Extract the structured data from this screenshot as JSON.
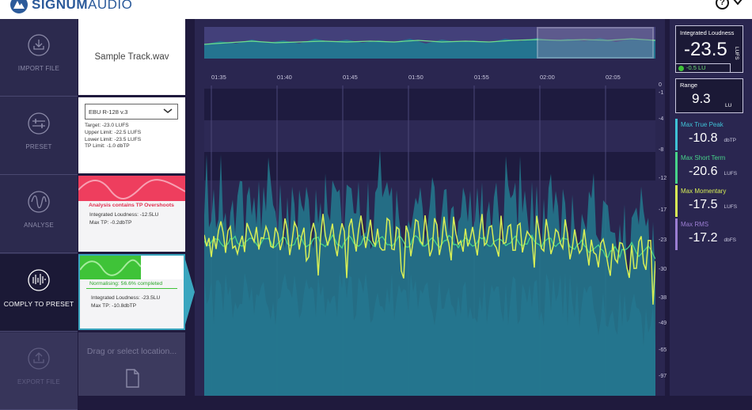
{
  "app": {
    "logo_bold": "SIGNUM",
    "logo_light": "AUDIO",
    "help_glyph": "?"
  },
  "nav": [
    {
      "label": "IMPORT FILE",
      "icon": "import-icon",
      "state": "normal"
    },
    {
      "label": "PRESET",
      "icon": "preset-icon",
      "state": "normal"
    },
    {
      "label": "ANALYSE",
      "icon": "analyse-icon",
      "state": "normal"
    },
    {
      "label": "COMPLY TO PRESET",
      "icon": "comply-icon",
      "state": "active"
    },
    {
      "label": "EXPORT FILE",
      "icon": "export-icon",
      "state": "disabled"
    }
  ],
  "import": {
    "filename": "Sample Track.wav"
  },
  "preset": {
    "selected": "EBU R-128 v.3",
    "lines": [
      "Target: -23.0 LUFS",
      "Upper Limit: -22.5 LUFS",
      "Lower Limit: -23.5 LUFS",
      "TP Limit: -1.0 dbTP"
    ]
  },
  "analyse": {
    "title": "Analysis contains TP Overshoots",
    "lines": [
      "Integrated Loudness: -12.5LU",
      "Max TP: -0.2dbTP"
    ]
  },
  "comply": {
    "title": "Normalising: 56.6% completed",
    "progress": 0.566,
    "lines": [
      "Integrated Loudness: -23.5LU",
      "Max TP: -10.8dbTP"
    ]
  },
  "export": {
    "placeholder": "Drag or select location..."
  },
  "timeline": [
    "01:35",
    "01:40",
    "01:45",
    "01:50",
    "01:55",
    "02:00",
    "02:05"
  ],
  "yaxis": [
    "0",
    "-1",
    "-4",
    "-8",
    "-12",
    "-17",
    "-23",
    "-30",
    "-38",
    "-49",
    "-65",
    "-97"
  ],
  "meters": {
    "integrated": {
      "title": "Integrated Loudness",
      "value": "-23.5",
      "unit": "LUFS",
      "delta": "-0.5 LU"
    },
    "range": {
      "title": "Range",
      "value": "9.3",
      "unit": "LU"
    },
    "items": [
      {
        "title": "Max True Peak",
        "value": "-10.8",
        "unit": "dbTP",
        "color": "#3fc1d6"
      },
      {
        "title": "Max Short Term",
        "value": "-20.6",
        "unit": "LUFS",
        "color": "#47d38a"
      },
      {
        "title": "Max Momentary",
        "value": "-17.5",
        "unit": "LUFS",
        "color": "#d8ef56"
      },
      {
        "title": "Max RMS",
        "value": "-17.2",
        "unit": "dbFS",
        "color": "#9b7ed3"
      }
    ]
  },
  "colors": {
    "accent": "#3aa6bf",
    "overshoot": "#ee3e5e",
    "progress": "#3fc338",
    "background": "#2a2650"
  }
}
